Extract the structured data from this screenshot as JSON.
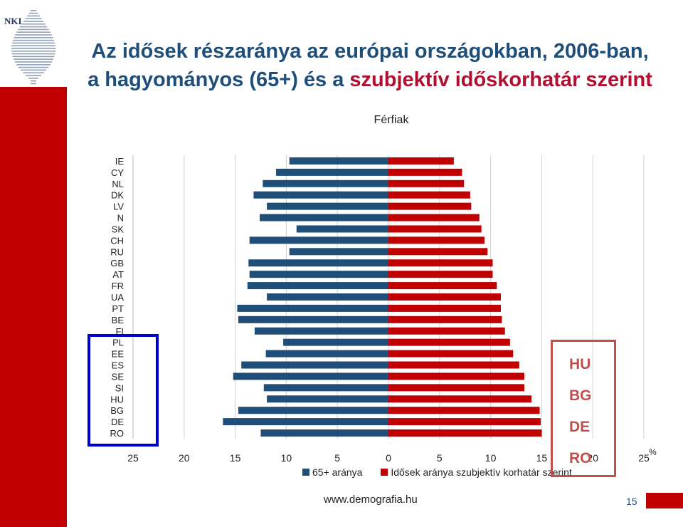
{
  "logo": {
    "text": "NKI"
  },
  "title": {
    "line1": "Az idősek részaránya az európai országokban, 2006-ban,",
    "line2_part1": "a hagyományos (65+) és a ",
    "line2_part2": "szubjektív időskorhatár szerint"
  },
  "colors": {
    "series1": "#1f4e79",
    "series2": "#c00000",
    "band": "#c00000",
    "highlight": "#c0504d",
    "ylabel_box": "#0000cc"
  },
  "chart_data": {
    "type": "bar",
    "orientation": "horizontal",
    "title": "Férfiak",
    "categories": [
      "IE",
      "CY",
      "NL",
      "DK",
      "LV",
      "N",
      "SK",
      "CH",
      "RU",
      "GB",
      "AT",
      "FR",
      "UA",
      "PT",
      "BE",
      "FI",
      "PL",
      "EE",
      "ES",
      "SE",
      "SI",
      "HU",
      "BG",
      "DE",
      "RO"
    ],
    "series": [
      {
        "name": "65+ aránya",
        "direction": "left",
        "values": [
          9.7,
          11.0,
          12.3,
          13.2,
          11.9,
          12.6,
          9.0,
          13.6,
          9.7,
          13.7,
          13.6,
          13.8,
          11.9,
          14.8,
          14.7,
          13.1,
          10.3,
          12.0,
          14.4,
          15.2,
          12.2,
          11.9,
          14.7,
          16.2,
          12.5
        ]
      },
      {
        "name": "Idősek aránya  szubjektív korhatár szerint",
        "direction": "right",
        "values": [
          6.4,
          7.2,
          7.4,
          8.0,
          8.1,
          8.9,
          9.1,
          9.4,
          9.7,
          10.2,
          10.2,
          10.6,
          11.0,
          11.0,
          11.1,
          11.4,
          11.9,
          12.2,
          12.8,
          13.3,
          13.3,
          14.0,
          14.8,
          14.9,
          15.0
        ]
      }
    ],
    "xlim": [
      -25,
      25
    ],
    "xticks": [
      -25,
      -20,
      -15,
      -10,
      -5,
      0,
      5,
      10,
      15,
      20,
      25
    ],
    "xtick_labels": [
      "25",
      "20",
      "15",
      "10",
      "5",
      "0",
      "5",
      "10",
      "15",
      "20",
      "25"
    ],
    "xunit": "%",
    "grid": true,
    "legend_position": "bottom"
  },
  "highlight": {
    "labels": [
      "HU",
      "BG",
      "DE",
      "RO"
    ]
  },
  "footer": {
    "url": "www.demografia.hu",
    "page": "15"
  }
}
